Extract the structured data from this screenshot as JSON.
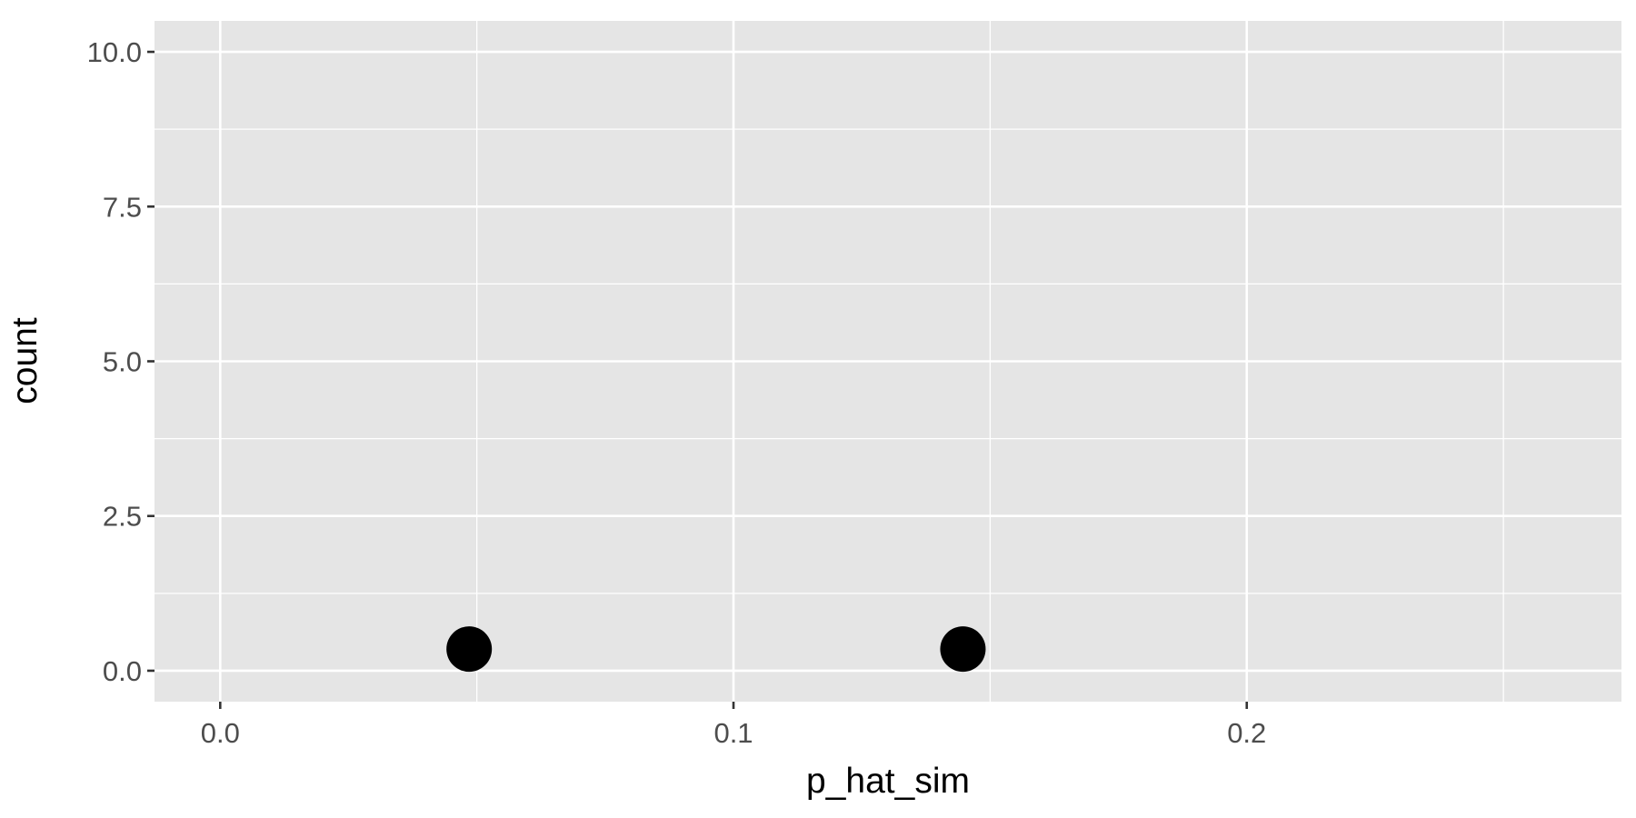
{
  "chart_data": {
    "type": "scatter",
    "title": "",
    "xlabel": "p_hat_sim",
    "ylabel": "count",
    "xlim": [
      -0.0128,
      0.273
    ],
    "ylim": [
      -0.5,
      10.5
    ],
    "x_ticks": [
      0.0,
      0.1,
      0.2
    ],
    "x_tick_labels": [
      "0.0",
      "0.1",
      "0.2"
    ],
    "x_minor_ticks": [
      0.05,
      0.15,
      0.25
    ],
    "y_ticks": [
      0.0,
      2.5,
      5.0,
      7.5,
      10.0
    ],
    "y_tick_labels": [
      "0.0",
      "2.5",
      "5.0",
      "7.5",
      "10.0"
    ],
    "y_minor_ticks": [
      1.25,
      3.75,
      6.25,
      8.75
    ],
    "grid": true,
    "legend": "none",
    "point_color": "#000000",
    "panel_color": "#e5e5e5",
    "points": [
      {
        "x": 0.0485,
        "y": 0.35
      },
      {
        "x": 0.1447,
        "y": 0.35
      }
    ]
  }
}
